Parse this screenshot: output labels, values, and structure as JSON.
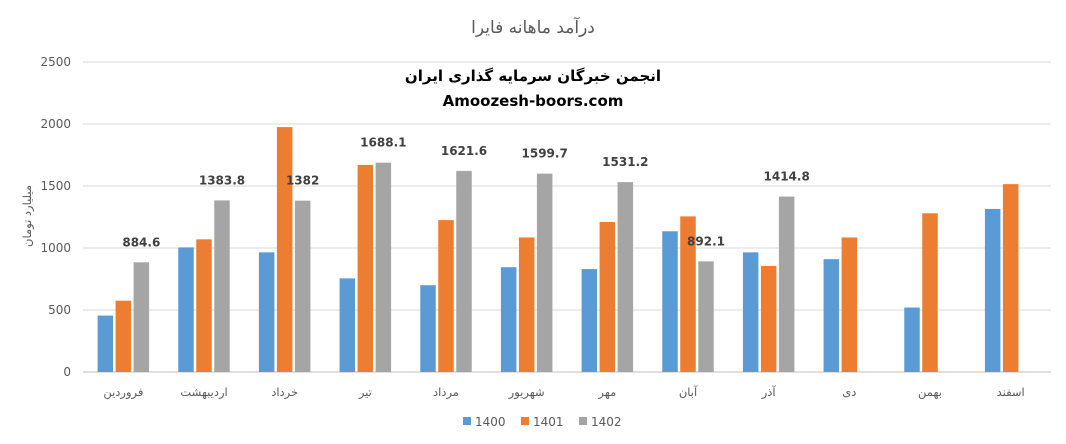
{
  "chart_data": {
    "type": "bar",
    "title": "درآمد ماهانه فایرا",
    "watermark_line1": "انجمن خبرگان سرمایه گذاری ایران",
    "watermark_line2": "Amoozesh-boors.com",
    "ylabel": "میلیارد تومان",
    "xlabel": "",
    "ylim": [
      0,
      2500
    ],
    "yticks": [
      0,
      500,
      1000,
      1500,
      2000,
      2500
    ],
    "grid": true,
    "legend_position": "bottom",
    "categories": [
      "فروردین",
      "اردیبهشت",
      "خرداد",
      "تیر",
      "مرداد",
      "شهریور",
      "مهر",
      "آبان",
      "آذر",
      "دی",
      "بهمن",
      "اسفند"
    ],
    "series": [
      {
        "name": "1400",
        "color": "#5b9bd5",
        "values": [
          455,
          1005,
          965,
          755,
          700,
          845,
          830,
          1135,
          965,
          910,
          520,
          1315
        ]
      },
      {
        "name": "1401",
        "color": "#ed7d31",
        "values": [
          575,
          1070,
          1975,
          1670,
          1225,
          1085,
          1210,
          1255,
          855,
          1085,
          1280,
          1515
        ]
      },
      {
        "name": "1402",
        "color": "#a5a5a5",
        "values": [
          884.6,
          1383.8,
          1382,
          1688.1,
          1621.6,
          1599.7,
          1531.2,
          892.1,
          1414.8,
          null,
          null,
          null
        ]
      }
    ],
    "data_labels": {
      "series": "1402",
      "values": [
        "884.6",
        "1383.8",
        "1382",
        "1688.1",
        "1621.6",
        "1599.7",
        "1531.2",
        "892.1",
        "1414.8",
        "",
        "",
        ""
      ]
    }
  }
}
